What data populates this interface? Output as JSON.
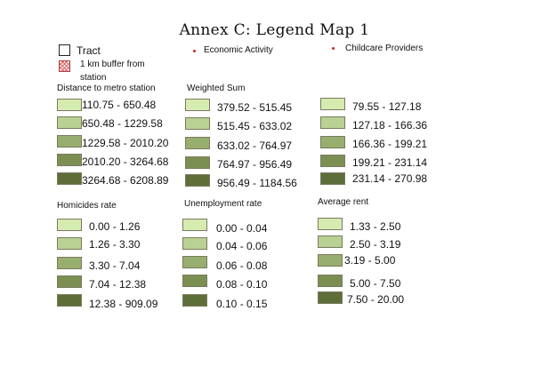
{
  "title": "Annex C: Legend Map 1",
  "general_legend": {
    "tract": "Tract",
    "buffer_line1": "1 km buffer from",
    "buffer_line2": "station",
    "economic_activity": "Economic Activity",
    "childcare_providers": "Childcare Providers"
  },
  "colors": {
    "class1": "#d6ebb0",
    "class2": "#b9d193",
    "class3": "#98ae6e",
    "class4": "#7c8f52",
    "class5": "#5e6e39",
    "point_marker": "#d22222"
  },
  "legends": [
    {
      "header": "Distance to metro station",
      "classes": [
        "110.75 - 650.48",
        "650.48 - 1229.58",
        "1229.58 - 2010.20",
        "2010.20 - 3264.68",
        "3264.68 - 6208.89"
      ]
    },
    {
      "header": "Weighted Sum",
      "classes": [
        "379.52 - 515.45",
        "515.45 - 633.02",
        "633.02 - 764.97",
        "764.97 - 956.49",
        "956.49 - 1184.56"
      ]
    },
    {
      "header": "",
      "classes": [
        "79.55 - 127.18",
        "127.18 - 166.36",
        "166.36 - 199.21",
        "199.21 - 231.14",
        "231.14 - 270.98"
      ]
    },
    {
      "header": "Homicides rate",
      "classes": [
        "0.00 - 1.26",
        "1.26 - 3.30",
        "3.30 - 7.04",
        "7.04 - 12.38",
        "12.38 - 909.09"
      ]
    },
    {
      "header": "Unemployment rate",
      "classes": [
        "0.00 - 0.04",
        "0.04 - 0.06",
        "0.06 - 0.08",
        "0.08 - 0.10",
        "0.10 - 0.15"
      ]
    },
    {
      "header": "Average rent",
      "classes": [
        "1.33 - 2.50",
        "2.50 - 3.19",
        "3.19 - 5.00",
        "5.00 - 7.50",
        "7.50 - 20.00"
      ]
    }
  ]
}
